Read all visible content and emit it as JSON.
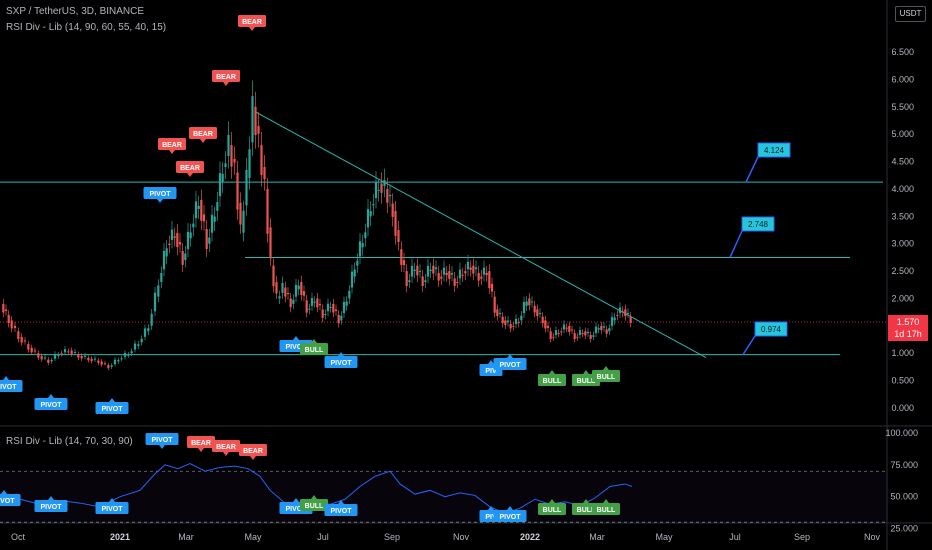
{
  "header": {
    "symbol_line": "SXP / TetherUS, 3D, BINANCE",
    "indicator_line": "RSI Div - Lib (14, 90, 60, 55, 40, 15)",
    "rsi_line": "RSI Div - Lib (14, 70, 30, 90)",
    "currency": "USDT"
  },
  "colors": {
    "up": "#26a69a",
    "down": "#ef5350",
    "bear": "#f05350",
    "pivot": "#2196f3",
    "bull": "#43a047",
    "line": "#2ab7b0",
    "rsi": "#2962ff",
    "price": "#f23645"
  },
  "price_axis": {
    "ticks": [
      "6.500",
      "6.000",
      "5.500",
      "5.000",
      "4.500",
      "4.000",
      "3.500",
      "3.000",
      "2.500",
      "2.000",
      "1.500",
      "1.000",
      "0.500",
      "0.000"
    ],
    "current_price": "1.570",
    "countdown": "1d 17h"
  },
  "rsi_axis": {
    "ticks": [
      "100.000",
      "75.000",
      "50.000",
      "25.000"
    ]
  },
  "time_axis": {
    "labels": [
      {
        "text": "Oct",
        "bold": false
      },
      {
        "text": "2021",
        "bold": true
      },
      {
        "text": "Mar",
        "bold": false
      },
      {
        "text": "May",
        "bold": false
      },
      {
        "text": "Jul",
        "bold": false
      },
      {
        "text": "Sep",
        "bold": false
      },
      {
        "text": "Nov",
        "bold": false
      },
      {
        "text": "2022",
        "bold": true
      },
      {
        "text": "Mar",
        "bold": false
      },
      {
        "text": "May",
        "bold": false
      },
      {
        "text": "Jul",
        "bold": false
      },
      {
        "text": "Sep",
        "bold": false
      },
      {
        "text": "Nov",
        "bold": false
      }
    ]
  },
  "levels": [
    "4.124",
    "2.748",
    "0.974"
  ],
  "tags": {
    "bear": "BEAR",
    "pivot": "PIVOT",
    "bull": "BULL",
    "piv_short": "PIV"
  },
  "chart_data": {
    "type": "candlestick",
    "price_range": [
      0,
      6.5
    ],
    "rsi_range": [
      20,
      100
    ],
    "rsi_levels": [
      70,
      30
    ],
    "horizontal_levels": [
      4.124,
      2.748,
      0.974
    ],
    "current_price": 1.57
  }
}
